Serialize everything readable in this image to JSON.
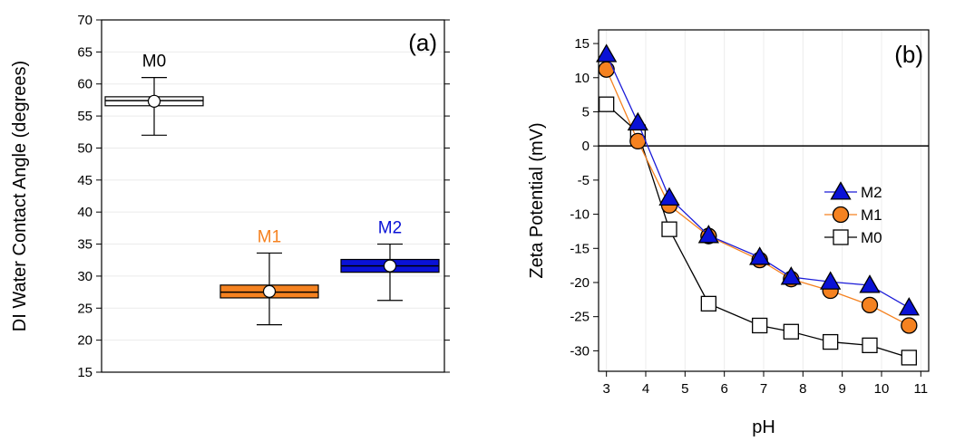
{
  "colors": {
    "M0": "#ffffff",
    "M1": "#f58220",
    "M2": "#0a12d6",
    "M0_label": "#000000",
    "M1_label": "#f58220",
    "M2_label": "#0a12d6",
    "M1_line": "#f58220",
    "M2_line": "#1b1bd8",
    "M0_line": "#000000"
  },
  "chart_data": [
    {
      "type": "box",
      "panel_label": "(a)",
      "ylabel": "DI Water Contact Angle  (degrees)",
      "xlabel": "",
      "ylim": [
        15,
        70
      ],
      "yticks": [
        15,
        20,
        25,
        30,
        35,
        40,
        45,
        50,
        55,
        60,
        65,
        70
      ],
      "grid": true,
      "boxes": [
        {
          "name": "M0",
          "q1": 56.6,
          "q3": 58.0,
          "median": 57.4,
          "mean": 57.3,
          "whisker_low": 52.0,
          "whisker_high": 61.0
        },
        {
          "name": "M1",
          "q1": 26.6,
          "q3": 28.6,
          "median": 27.5,
          "mean": 27.6,
          "whisker_low": 22.4,
          "whisker_high": 33.6
        },
        {
          "name": "M2",
          "q1": 30.6,
          "q3": 32.6,
          "median": 31.6,
          "mean": 31.6,
          "whisker_low": 26.2,
          "whisker_high": 35.0
        }
      ]
    },
    {
      "type": "line",
      "panel_label": "(b)",
      "xlabel": "pH",
      "ylabel": "Zeta Potential (mV)",
      "xlim": [
        2.8,
        11.2
      ],
      "ylim": [
        -33,
        17
      ],
      "xticks": [
        3,
        4,
        5,
        6,
        7,
        8,
        9,
        10,
        11
      ],
      "yticks": [
        15,
        10,
        5,
        0,
        -5,
        -10,
        -15,
        -20,
        -25,
        -30
      ],
      "grid": true,
      "zero_line": true,
      "legend_position": "right",
      "series": [
        {
          "name": "M2",
          "marker": "triangle",
          "x": [
            3.0,
            3.8,
            4.6,
            5.6,
            6.9,
            7.7,
            8.7,
            9.7,
            10.7
          ],
          "y": [
            13.4,
            3.4,
            -7.6,
            -13.1,
            -16.3,
            -19.2,
            -19.9,
            -20.4,
            -23.7
          ]
        },
        {
          "name": "M1",
          "marker": "circle",
          "x": [
            3.0,
            3.8,
            4.6,
            5.6,
            6.9,
            7.7,
            8.7,
            9.7,
            10.7
          ],
          "y": [
            11.2,
            0.7,
            -8.7,
            -13.2,
            -16.7,
            -19.5,
            -21.2,
            -23.3,
            -26.3
          ]
        },
        {
          "name": "M0",
          "marker": "square",
          "x": [
            3.0,
            3.8,
            4.6,
            5.6,
            6.9,
            7.7,
            8.7,
            9.7,
            10.7
          ],
          "y": [
            6.1,
            2.0,
            -12.2,
            -23.1,
            -26.3,
            -27.2,
            -28.7,
            -29.2,
            -31.0
          ]
        }
      ]
    }
  ]
}
